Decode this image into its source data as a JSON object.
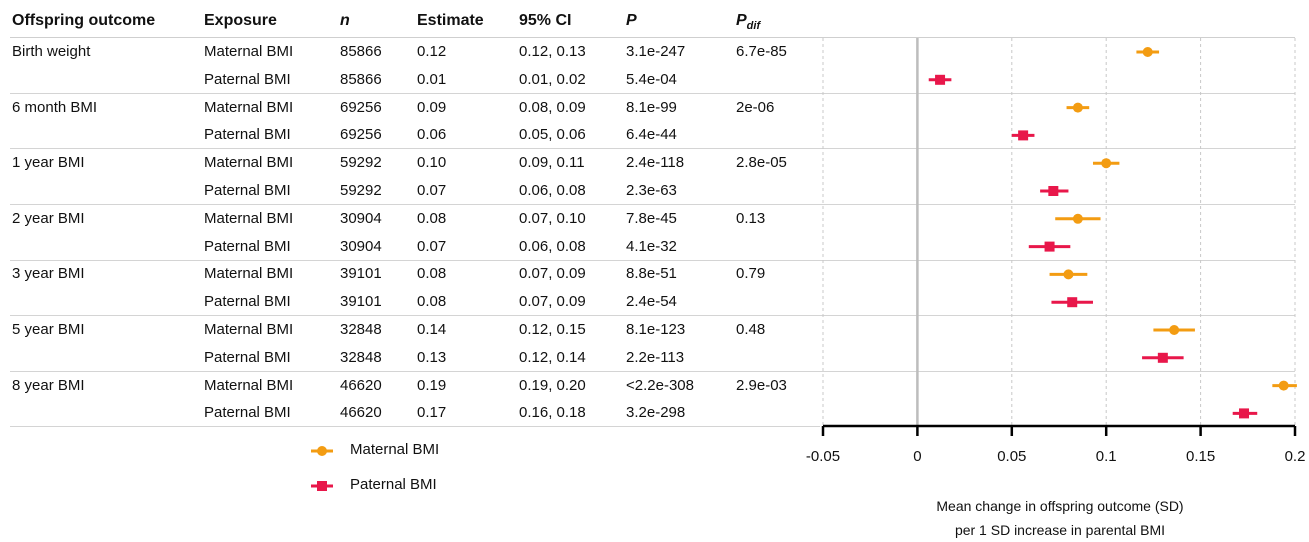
{
  "headers": {
    "outcome": "Offspring outcome",
    "exposure": "Exposure",
    "n": "n",
    "estimate": "Estimate",
    "ci": "95% CI",
    "p": "P",
    "pdif_main": "P",
    "pdif_sub": "dif"
  },
  "rows": [
    {
      "outcome": "Birth weight",
      "exposure": "Maternal BMI",
      "n": "85866",
      "estimate": "0.12",
      "ci": "0.12, 0.13",
      "p": "3.1e-247",
      "pdif": "6.7e-85"
    },
    {
      "outcome": "",
      "exposure": "Paternal BMI",
      "n": "85866",
      "estimate": "0.01",
      "ci": "0.01, 0.02",
      "p": "5.4e-04",
      "pdif": ""
    },
    {
      "outcome": "6 month BMI",
      "exposure": "Maternal BMI",
      "n": "69256",
      "estimate": "0.09",
      "ci": "0.08, 0.09",
      "p": "8.1e-99",
      "pdif": "2e-06"
    },
    {
      "outcome": "",
      "exposure": "Paternal BMI",
      "n": "69256",
      "estimate": "0.06",
      "ci": "0.05, 0.06",
      "p": "6.4e-44",
      "pdif": ""
    },
    {
      "outcome": "1 year BMI",
      "exposure": "Maternal BMI",
      "n": "59292",
      "estimate": "0.10",
      "ci": "0.09, 0.11",
      "p": "2.4e-118",
      "pdif": "2.8e-05"
    },
    {
      "outcome": "",
      "exposure": "Paternal BMI",
      "n": "59292",
      "estimate": "0.07",
      "ci": "0.06, 0.08",
      "p": "2.3e-63",
      "pdif": ""
    },
    {
      "outcome": "2 year BMI",
      "exposure": "Maternal BMI",
      "n": "30904",
      "estimate": "0.08",
      "ci": "0.07, 0.10",
      "p": "7.8e-45",
      "pdif": "0.13"
    },
    {
      "outcome": "",
      "exposure": "Paternal BMI",
      "n": "30904",
      "estimate": "0.07",
      "ci": "0.06, 0.08",
      "p": "4.1e-32",
      "pdif": ""
    },
    {
      "outcome": "3 year BMI",
      "exposure": "Maternal BMI",
      "n": "39101",
      "estimate": "0.08",
      "ci": "0.07, 0.09",
      "p": "8.8e-51",
      "pdif": "0.79"
    },
    {
      "outcome": "",
      "exposure": "Paternal BMI",
      "n": "39101",
      "estimate": "0.08",
      "ci": "0.07, 0.09",
      "p": "2.4e-54",
      "pdif": ""
    },
    {
      "outcome": "5 year BMI",
      "exposure": "Maternal BMI",
      "n": "32848",
      "estimate": "0.14",
      "ci": "0.12, 0.15",
      "p": "8.1e-123",
      "pdif": "0.48"
    },
    {
      "outcome": "",
      "exposure": "Paternal BMI",
      "n": "32848",
      "estimate": "0.13",
      "ci": "0.12, 0.14",
      "p": "2.2e-113",
      "pdif": ""
    },
    {
      "outcome": "8 year BMI",
      "exposure": "Maternal BMI",
      "n": "46620",
      "estimate": "0.19",
      "ci": "0.19, 0.20",
      "p": "<2.2e-308",
      "pdif": "2.9e-03"
    },
    {
      "outcome": "",
      "exposure": "Paternal BMI",
      "n": "46620",
      "estimate": "0.17",
      "ci": "0.16, 0.18",
      "p": "3.2e-298",
      "pdif": ""
    }
  ],
  "legend": {
    "maternal": "Maternal BMI",
    "paternal": "Paternal BMI"
  },
  "axis_title": {
    "line1": "Mean change in offspring outcome (SD)",
    "line2": "per 1 SD increase in parental BMI"
  },
  "colors": {
    "maternal": "#F39C12",
    "paternal": "#E8174A",
    "grid": "#c8c8c8",
    "zero_line": "#bdbdbd"
  },
  "chart_data": {
    "type": "scatter",
    "subtype": "forest",
    "xlim": [
      -0.05,
      0.2
    ],
    "xticks": [
      -0.05,
      0,
      0.05,
      0.1,
      0.15,
      0.2
    ],
    "xtick_labels": [
      "-0.05",
      "0",
      "0.05",
      "0.1",
      "0.15",
      "0.2"
    ],
    "grid": true,
    "legend_position": "bottom-left",
    "categories": [
      "Birth weight",
      "6 month BMI",
      "1 year BMI",
      "2 year BMI",
      "3 year BMI",
      "5 year BMI",
      "8 year BMI"
    ],
    "series": [
      {
        "name": "Maternal BMI",
        "marker": "circle",
        "estimates": [
          0.122,
          0.085,
          0.1,
          0.085,
          0.08,
          0.136,
          0.194
        ],
        "ci_low": [
          0.116,
          0.079,
          0.093,
          0.073,
          0.07,
          0.125,
          0.188
        ],
        "ci_high": [
          0.128,
          0.091,
          0.107,
          0.097,
          0.09,
          0.147,
          0.201
        ]
      },
      {
        "name": "Paternal BMI",
        "marker": "square",
        "estimates": [
          0.012,
          0.056,
          0.072,
          0.07,
          0.082,
          0.13,
          0.173
        ],
        "ci_low": [
          0.006,
          0.05,
          0.065,
          0.059,
          0.071,
          0.119,
          0.167
        ],
        "ci_high": [
          0.018,
          0.062,
          0.08,
          0.081,
          0.093,
          0.141,
          0.18
        ]
      }
    ]
  }
}
